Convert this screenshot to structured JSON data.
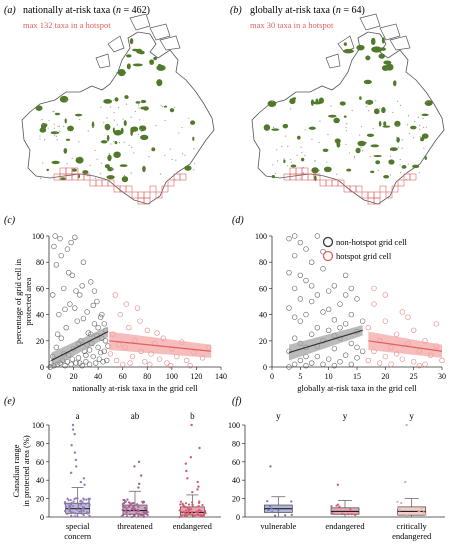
{
  "figure": {
    "colors": {
      "protected": "#4f7a2a",
      "map_outline": "#555555",
      "hotspot": "#e06060",
      "hotspot_fill": "#f4a0a0",
      "nonhotspot_point": "#333333",
      "grey_band": "#9e9e9e",
      "special_concern": "#8f7db8",
      "threatened": "#a75f8f",
      "endangered": "#d65b73",
      "vulnerable": "#6f79b8",
      "critically_endangered": "#e8a8a0"
    }
  },
  "panels": {
    "a": {
      "letter": "(a)",
      "title_pre": "nationally at-risk taxa (",
      "n_label": "n",
      "n_value": " = 462)",
      "note": "max 132 taxa in a hotspot"
    },
    "b": {
      "letter": "(b)",
      "title_pre": "globally at-risk taxa (",
      "n_label": "n",
      "n_value": " = 64)",
      "note": "max 30 taxa in a hotspot"
    },
    "c": {
      "letter": "(c)"
    },
    "d": {
      "letter": "(d)"
    },
    "e": {
      "letter": "(e)"
    },
    "f": {
      "letter": "(f)"
    }
  },
  "legend": {
    "items": [
      {
        "label": "non-hotspot grid cell",
        "color": "#333333"
      },
      {
        "label": "hotspot grid cell",
        "color": "#e06060"
      }
    ]
  },
  "chart_data": [
    {
      "panel": "c",
      "type": "scatter",
      "xlabel": "nationally at-risk taxa in the grid cell",
      "ylabel": "percentage of grid cell in protected area",
      "xlim": [
        0,
        140
      ],
      "ylim": [
        0,
        100
      ],
      "xticks": [
        0,
        20,
        40,
        60,
        80,
        100,
        120,
        140
      ],
      "yticks": [
        0,
        20,
        40,
        60,
        80,
        100
      ],
      "series": [
        {
          "name": "non-hotspot grid cell",
          "fit_x": [
            2,
            48
          ],
          "fit_y": [
            5,
            27
          ],
          "points": [
            [
              1,
              0
            ],
            [
              2,
              3
            ],
            [
              3,
              8
            ],
            [
              4,
              1
            ],
            [
              5,
              100
            ],
            [
              6,
              15
            ],
            [
              7,
              2
            ],
            [
              8,
              40
            ],
            [
              9,
              98
            ],
            [
              10,
              22
            ],
            [
              11,
              5
            ],
            [
              12,
              60
            ],
            [
              13,
              1
            ],
            [
              14,
              30
            ],
            [
              15,
              90
            ],
            [
              16,
              9
            ],
            [
              17,
              48
            ],
            [
              18,
              2
            ],
            [
              19,
              70
            ],
            [
              20,
              14
            ],
            [
              21,
              99
            ],
            [
              22,
              3
            ],
            [
              23,
              35
            ],
            [
              24,
              7
            ],
            [
              25,
              55
            ],
            [
              26,
              20
            ],
            [
              27,
              1
            ],
            [
              28,
              80
            ],
            [
              29,
              12
            ],
            [
              30,
              4
            ],
            [
              31,
              42
            ],
            [
              32,
              26
            ],
            [
              33,
              2
            ],
            [
              34,
              65
            ],
            [
              35,
              18
            ],
            [
              36,
              8
            ],
            [
              37,
              33
            ],
            [
              38,
              3
            ],
            [
              39,
              50
            ],
            [
              40,
              15
            ],
            [
              41,
              6
            ],
            [
              42,
              38
            ],
            [
              43,
              22
            ],
            [
              44,
              4
            ],
            [
              45,
              12
            ],
            [
              46,
              28
            ],
            [
              47,
              5
            ],
            [
              48,
              16
            ],
            [
              3,
              55
            ],
            [
              6,
              78
            ],
            [
              9,
              3
            ],
            [
              12,
              10
            ],
            [
              15,
              4
            ],
            [
              18,
              95
            ],
            [
              21,
              45
            ],
            [
              24,
              18
            ],
            [
              27,
              62
            ],
            [
              30,
              9
            ],
            [
              33,
              13
            ],
            [
              36,
              47
            ],
            [
              39,
              24
            ],
            [
              42,
              11
            ],
            [
              45,
              33
            ],
            [
              4,
              92
            ],
            [
              10,
              85
            ],
            [
              16,
              72
            ],
            [
              22,
              58
            ],
            [
              28,
              37
            ],
            [
              34,
              25
            ],
            [
              40,
              30
            ],
            [
              46,
              20
            ],
            [
              7,
              25
            ],
            [
              13,
              44
            ],
            [
              19,
              6
            ],
            [
              25,
              3
            ],
            [
              31,
              17
            ],
            [
              37,
              58
            ],
            [
              43,
              40
            ]
          ]
        },
        {
          "name": "hotspot grid cell",
          "fit_x": [
            49,
            132
          ],
          "fit_y": [
            20,
            12
          ],
          "points": [
            [
              50,
              10
            ],
            [
              52,
              25
            ],
            [
              55,
              5
            ],
            [
              58,
              40
            ],
            [
              60,
              2
            ],
            [
              62,
              15
            ],
            [
              65,
              30
            ],
            [
              68,
              8
            ],
            [
              70,
              20
            ],
            [
              72,
              45
            ],
            [
              75,
              12
            ],
            [
              78,
              4
            ],
            [
              80,
              28
            ],
            [
              83,
              10
            ],
            [
              86,
              18
            ],
            [
              90,
              6
            ],
            [
              93,
              22
            ],
            [
              96,
              3
            ],
            [
              100,
              14
            ],
            [
              104,
              8
            ],
            [
              108,
              19
            ],
            [
              112,
              5
            ],
            [
              118,
              11
            ],
            [
              125,
              7
            ],
            [
              130,
              15
            ],
            [
              54,
              55
            ],
            [
              63,
              48
            ],
            [
              74,
              35
            ],
            [
              88,
              26
            ],
            [
              99,
              1
            ],
            [
              57,
              17
            ],
            [
              66,
              3
            ],
            [
              82,
              2
            ],
            [
              115,
              1
            ]
          ]
        }
      ]
    },
    {
      "panel": "d",
      "type": "scatter",
      "xlabel": "globally at-risk taxa in the grid cell",
      "xlim": [
        0,
        30
      ],
      "ylim": [
        0,
        100
      ],
      "xticks": [
        0,
        5,
        10,
        15,
        20,
        25,
        30
      ],
      "yticks": [
        0,
        20,
        40,
        60,
        80,
        100
      ],
      "series": [
        {
          "name": "non-hotspot grid cell",
          "fit_x": [
            3,
            16
          ],
          "fit_y": [
            11,
            28
          ],
          "points": [
            [
              3,
              0
            ],
            [
              3,
              12
            ],
            [
              3,
              45
            ],
            [
              3,
              98
            ],
            [
              4,
              2
            ],
            [
              4,
              22
            ],
            [
              4,
              60
            ],
            [
              4,
              85
            ],
            [
              4,
              100
            ],
            [
              5,
              5
            ],
            [
              5,
              18
            ],
            [
              5,
              35
            ],
            [
              5,
              70
            ],
            [
              5,
              95
            ],
            [
              6,
              1
            ],
            [
              6,
              15
            ],
            [
              6,
              40
            ],
            [
              6,
              66
            ],
            [
              6,
              90
            ],
            [
              7,
              3
            ],
            [
              7,
              25
            ],
            [
              7,
              50
            ],
            [
              7,
              80
            ],
            [
              8,
              8
            ],
            [
              8,
              30
            ],
            [
              8,
              55
            ],
            [
              8,
              100
            ],
            [
              9,
              2
            ],
            [
              9,
              20
            ],
            [
              9,
              42
            ],
            [
              9,
              75
            ],
            [
              10,
              6
            ],
            [
              10,
              28
            ],
            [
              10,
              58
            ],
            [
              11,
              1
            ],
            [
              11,
              14
            ],
            [
              11,
              36
            ],
            [
              11,
              62
            ],
            [
              12,
              4
            ],
            [
              12,
              22
            ],
            [
              12,
              48
            ],
            [
              13,
              9
            ],
            [
              13,
              33
            ],
            [
              13,
              70
            ],
            [
              14,
              2
            ],
            [
              14,
              18
            ],
            [
              14,
              40
            ],
            [
              15,
              7
            ],
            [
              15,
              27
            ],
            [
              15,
              52
            ],
            [
              16,
              12
            ],
            [
              16,
              35
            ],
            [
              3,
              72
            ],
            [
              4,
              38
            ],
            [
              5,
              52
            ],
            [
              6,
              8
            ],
            [
              7,
              62
            ],
            [
              8,
              16
            ],
            [
              9,
              88
            ],
            [
              10,
              44
            ],
            [
              11,
              24
            ],
            [
              12,
              30
            ],
            [
              13,
              55
            ],
            [
              14,
              60
            ],
            [
              15,
              15
            ]
          ]
        },
        {
          "name": "hotspot grid cell",
          "fit_x": [
            17,
            30
          ],
          "fit_y": [
            20,
            12
          ],
          "points": [
            [
              17,
              5
            ],
            [
              17,
              30
            ],
            [
              18,
              12
            ],
            [
              18,
              48
            ],
            [
              19,
              3
            ],
            [
              19,
              20
            ],
            [
              20,
              8
            ],
            [
              20,
              35
            ],
            [
              21,
              15
            ],
            [
              21,
              2
            ],
            [
              22,
              25
            ],
            [
              22,
              10
            ],
            [
              23,
              6
            ],
            [
              23,
              42
            ],
            [
              24,
              18
            ],
            [
              25,
              4
            ],
            [
              25,
              28
            ],
            [
              26,
              12
            ],
            [
              27,
              2
            ],
            [
              27,
              20
            ],
            [
              28,
              9
            ],
            [
              29,
              16
            ],
            [
              30,
              5
            ],
            [
              18,
              60
            ],
            [
              20,
              55
            ],
            [
              24,
              38
            ],
            [
              26,
              1
            ],
            [
              29,
              33
            ]
          ]
        }
      ]
    },
    {
      "panel": "e",
      "type": "box",
      "ylabel": "Canadian range in protected area (%)",
      "ylim": [
        0,
        100
      ],
      "yticks": [
        0,
        20,
        40,
        60,
        80,
        100
      ],
      "categories": [
        "special\nconcern",
        "threatened",
        "endangered"
      ],
      "letters": [
        "a",
        "ab",
        "b"
      ],
      "boxes": [
        {
          "q1": 4,
          "median": 9,
          "q3": 15,
          "whisk_lo": 0,
          "whisk_hi": 32,
          "outliers": [
            35,
            38,
            42,
            48,
            55,
            62,
            70,
            78,
            90,
            95,
            100
          ]
        },
        {
          "q1": 3,
          "median": 7,
          "q3": 13,
          "whisk_lo": 0,
          "whisk_hi": 28,
          "outliers": [
            32,
            36,
            45,
            55,
            60
          ]
        },
        {
          "q1": 2,
          "median": 5,
          "q3": 11,
          "whisk_lo": 0,
          "whisk_hi": 24,
          "outliers": [
            27,
            30,
            33,
            38,
            42,
            50,
            58,
            65,
            75,
            100
          ]
        }
      ]
    },
    {
      "panel": "f",
      "type": "box",
      "ylim": [
        0,
        100
      ],
      "yticks": [
        0,
        20,
        40,
        60,
        80,
        100
      ],
      "categories": [
        "vulnerable",
        "endangered",
        "critically\nendangered"
      ],
      "letters": [
        "y",
        "y",
        "y"
      ],
      "boxes": [
        {
          "q1": 5,
          "median": 9,
          "q3": 13,
          "whisk_lo": 0,
          "whisk_hi": 22,
          "outliers": [
            55
          ]
        },
        {
          "q1": 3,
          "median": 6,
          "q3": 10,
          "whisk_lo": 0,
          "whisk_hi": 18,
          "outliers": [
            35
          ]
        },
        {
          "q1": 2,
          "median": 6,
          "q3": 11,
          "whisk_lo": 0,
          "whisk_hi": 20,
          "outliers": [
            38,
            100
          ]
        }
      ]
    }
  ]
}
